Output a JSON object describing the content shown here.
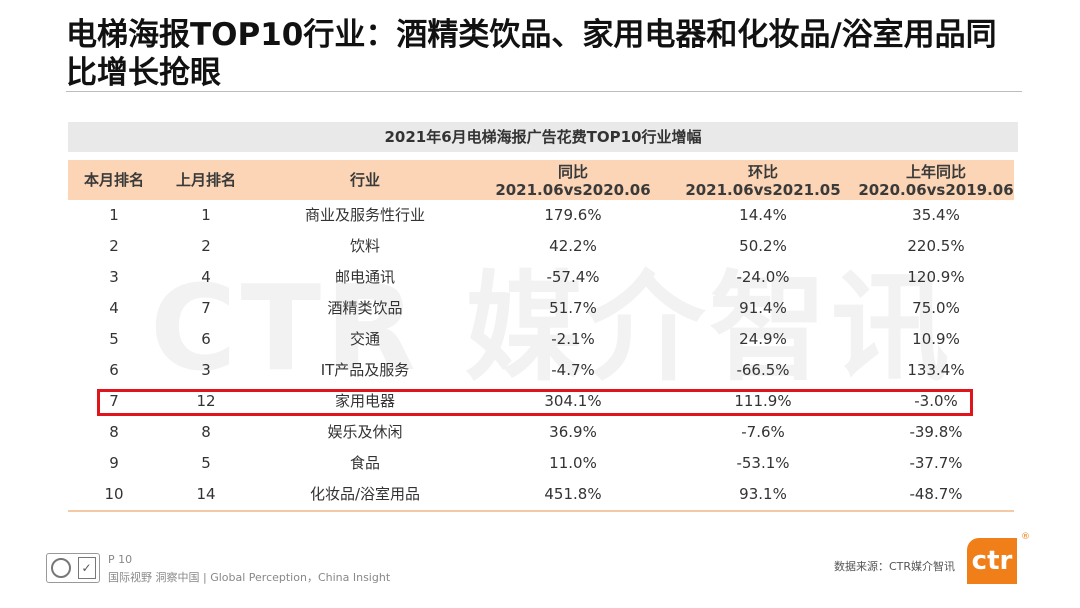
{
  "title": "电梯海报TOP10行业：酒精类饮品、家用电器和化妆品/浴室用品同比增长抢眼",
  "watermark": "CTR 媒介智讯",
  "table": {
    "caption": "2021年6月电梯海报广告花费TOP10行业增幅",
    "headers": {
      "rank_this": "本月排名",
      "rank_last": "上月排名",
      "industry": "行业",
      "yoy": {
        "label": "同比",
        "sub": "2021.06vs2020.06"
      },
      "mom": {
        "label": "环比",
        "sub": "2021.06vs2021.05"
      },
      "prev_yoy": {
        "label": "上年同比",
        "sub": "2020.06vs2019.06"
      }
    },
    "rows": [
      {
        "rank_this": "1",
        "rank_last": "1",
        "industry": "商业及服务性行业",
        "yoy": "179.6%",
        "mom": "14.4%",
        "prev_yoy": "35.4%"
      },
      {
        "rank_this": "2",
        "rank_last": "2",
        "industry": "饮料",
        "yoy": "42.2%",
        "mom": "50.2%",
        "prev_yoy": "220.5%"
      },
      {
        "rank_this": "3",
        "rank_last": "4",
        "industry": "邮电通讯",
        "yoy": "-57.4%",
        "mom": "-24.0%",
        "prev_yoy": "120.9%"
      },
      {
        "rank_this": "4",
        "rank_last": "7",
        "industry": "酒精类饮品",
        "yoy": "51.7%",
        "mom": "91.4%",
        "prev_yoy": "75.0%"
      },
      {
        "rank_this": "5",
        "rank_last": "6",
        "industry": "交通",
        "yoy": "-2.1%",
        "mom": "24.9%",
        "prev_yoy": "10.9%"
      },
      {
        "rank_this": "6",
        "rank_last": "3",
        "industry": "IT产品及服务",
        "yoy": "-4.7%",
        "mom": "-66.5%",
        "prev_yoy": "133.4%"
      },
      {
        "rank_this": "7",
        "rank_last": "12",
        "industry": "家用电器",
        "yoy": "304.1%",
        "mom": "111.9%",
        "prev_yoy": "-3.0%"
      },
      {
        "rank_this": "8",
        "rank_last": "8",
        "industry": "娱乐及休闲",
        "yoy": "36.9%",
        "mom": "-7.6%",
        "prev_yoy": "-39.8%"
      },
      {
        "rank_this": "9",
        "rank_last": "5",
        "industry": "食品",
        "yoy": "11.0%",
        "mom": "-53.1%",
        "prev_yoy": "-37.7%"
      },
      {
        "rank_this": "10",
        "rank_last": "14",
        "industry": "化妆品/浴室用品",
        "yoy": "451.8%",
        "mom": "93.1%",
        "prev_yoy": "-48.7%"
      }
    ]
  },
  "footer": {
    "page": "P 10",
    "slogan": "国际视野  洞察中国 | Global Perception，China Insight",
    "source": "数据来源：CTR媒介智讯",
    "brand": "ctr",
    "brand_mark": "®"
  },
  "colors": {
    "header_bg": "#fbd5b5",
    "highlight": "#e0141b",
    "brand": "#f07f1a"
  }
}
